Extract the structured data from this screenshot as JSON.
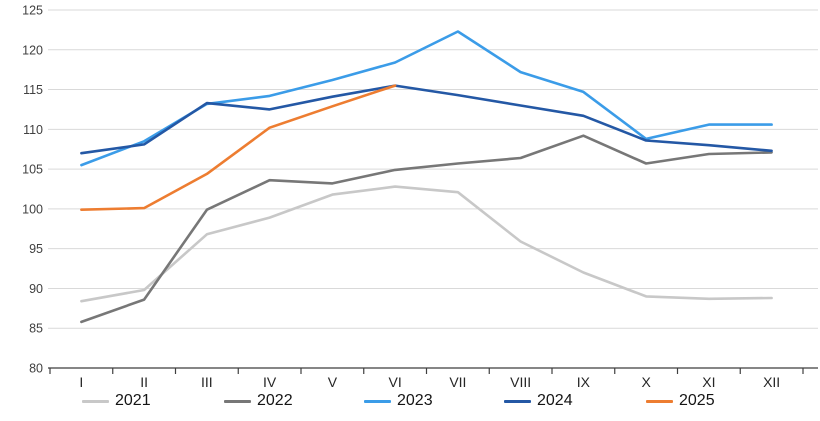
{
  "chart_data": {
    "type": "line",
    "title": "",
    "xlabel": "",
    "ylabel": "",
    "categories": [
      "I",
      "II",
      "III",
      "IV",
      "V",
      "VI",
      "VII",
      "VIII",
      "IX",
      "X",
      "XI",
      "XII"
    ],
    "series": [
      {
        "name": "2021",
        "color": "#C8C8C8",
        "values": [
          88.4,
          89.8,
          96.8,
          98.9,
          101.8,
          102.8,
          102.1,
          95.9,
          92.0,
          89.0,
          88.7,
          88.8
        ]
      },
      {
        "name": "2022",
        "color": "#777777",
        "values": [
          85.8,
          88.6,
          99.9,
          103.6,
          103.2,
          104.9,
          105.7,
          106.4,
          109.2,
          105.7,
          106.9,
          107.1
        ]
      },
      {
        "name": "2023",
        "color": "#3B9CE8",
        "values": [
          105.5,
          108.5,
          113.2,
          114.2,
          116.2,
          118.4,
          122.3,
          117.2,
          114.7,
          108.8,
          110.6,
          110.6
        ]
      },
      {
        "name": "2024",
        "color": "#2458A5",
        "values": [
          107.0,
          108.1,
          113.3,
          112.5,
          114.1,
          115.5,
          114.3,
          113.0,
          111.7,
          108.6,
          108.0,
          107.3
        ]
      },
      {
        "name": "2025",
        "color": "#ED7D31",
        "values": [
          99.9,
          100.1,
          104.4,
          110.2,
          112.9,
          115.5
        ]
      }
    ],
    "ylim": [
      80,
      125
    ],
    "ytick_step": 5,
    "grid": "horizontal",
    "legend_position": "bottom",
    "legend_entries": [
      "2021",
      "2022",
      "2023",
      "2024",
      "2025"
    ]
  },
  "style_colors": {
    "gridline": "#D9D9D9",
    "axis_line": "#3f3f3f",
    "y_tick_text": "#404040",
    "x_tick_text": "#262626",
    "legend_text": "#151515",
    "background": "#FFFFFF"
  }
}
